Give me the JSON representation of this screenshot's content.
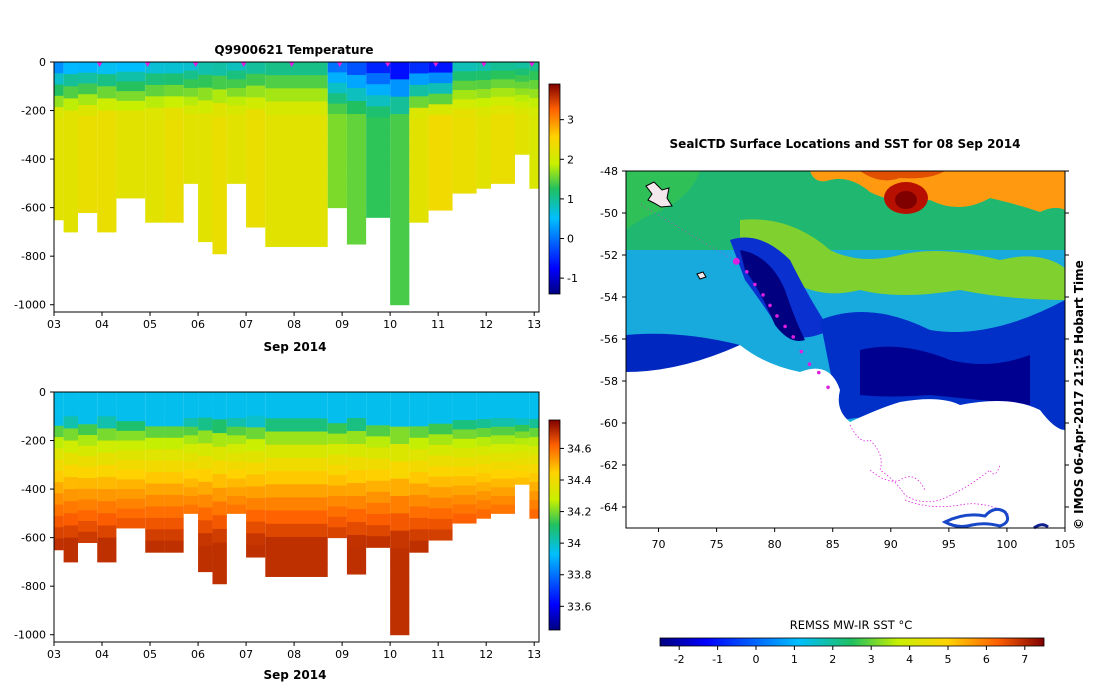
{
  "chart_data": [
    {
      "type": "heatmap",
      "title": "Q9900621  Temperature",
      "xlabel": "Sep 2014",
      "ylabel": "",
      "x_ticks": [
        "03",
        "04",
        "05",
        "06",
        "07",
        "08",
        "09",
        "10",
        "11",
        "12",
        "13"
      ],
      "x_range_days": [
        3,
        13.1
      ],
      "y_ticks": [
        0,
        -200,
        -400,
        -600,
        -800,
        -1000
      ],
      "ylim": [
        -1030,
        0
      ],
      "colorbar": {
        "ticks": [
          3,
          2,
          1,
          0,
          -1
        ],
        "range": [
          -1.4,
          3.9
        ]
      },
      "profiles": [
        {
          "t": 3.0,
          "depth": 650,
          "surface": -0.2,
          "deep": 2.2
        },
        {
          "t": 3.2,
          "depth": 700,
          "surface": 0.1,
          "deep": 2.2
        },
        {
          "t": 3.5,
          "depth": 620,
          "surface": 0.1,
          "deep": 2.3
        },
        {
          "t": 3.9,
          "depth": 700,
          "surface": 0.2,
          "deep": 2.3
        },
        {
          "t": 4.3,
          "depth": 560,
          "surface": 0.2,
          "deep": 2.2
        },
        {
          "t": 4.9,
          "depth": 660,
          "surface": 0.4,
          "deep": 2.2
        },
        {
          "t": 5.3,
          "depth": 660,
          "surface": 0.4,
          "deep": 2.3
        },
        {
          "t": 5.7,
          "depth": 500,
          "surface": 0.5,
          "deep": 2.2
        },
        {
          "t": 6.0,
          "depth": 740,
          "surface": 0.6,
          "deep": 2.2
        },
        {
          "t": 6.3,
          "depth": 790,
          "surface": 0.6,
          "deep": 2.3
        },
        {
          "t": 6.6,
          "depth": 500,
          "surface": 0.6,
          "deep": 2.2
        },
        {
          "t": 7.0,
          "depth": 680,
          "surface": 0.7,
          "deep": 2.3
        },
        {
          "t": 7.4,
          "depth": 760,
          "surface": 0.8,
          "deep": 2.2
        },
        {
          "t": 8.7,
          "depth": 600,
          "surface": -0.3,
          "deep": 1.6
        },
        {
          "t": 9.1,
          "depth": 750,
          "surface": -0.6,
          "deep": 1.5
        },
        {
          "t": 9.5,
          "depth": 640,
          "surface": -0.9,
          "deep": 1.3
        },
        {
          "t": 10.0,
          "depth": 1000,
          "surface": -1.3,
          "deep": 1.4
        },
        {
          "t": 10.4,
          "depth": 660,
          "surface": -1.0,
          "deep": 2.2
        },
        {
          "t": 10.8,
          "depth": 610,
          "surface": -1.2,
          "deep": 2.4
        },
        {
          "t": 11.3,
          "depth": 540,
          "surface": 0.6,
          "deep": 2.3
        },
        {
          "t": 11.8,
          "depth": 520,
          "surface": 0.7,
          "deep": 2.2
        },
        {
          "t": 12.1,
          "depth": 500,
          "surface": 0.8,
          "deep": 2.3
        },
        {
          "t": 12.6,
          "depth": 380,
          "surface": 0.8,
          "deep": 2.2
        },
        {
          "t": 12.9,
          "depth": 520,
          "surface": 0.9,
          "deep": 2.1
        }
      ]
    },
    {
      "type": "heatmap",
      "title": "",
      "xlabel": "Sep 2014",
      "ylabel": "",
      "x_ticks": [
        "03",
        "04",
        "05",
        "06",
        "07",
        "08",
        "09",
        "10",
        "11",
        "12",
        "13"
      ],
      "x_range_days": [
        3,
        13.1
      ],
      "y_ticks": [
        0,
        -200,
        -400,
        -600,
        -800,
        -1000
      ],
      "ylim": [
        -1030,
        0
      ],
      "colorbar": {
        "ticks": [
          34.6,
          34.4,
          34.2,
          34,
          33.8,
          33.6
        ],
        "range": [
          33.45,
          34.78
        ]
      },
      "profiles_surface": 33.95,
      "profiles_deep": 34.7
    },
    {
      "type": "heatmap",
      "title": "SealCTD Surface Locations and SST for 08 Sep 2014",
      "xlabel": "",
      "ylabel": "",
      "x_ticks": [
        70,
        75,
        80,
        85,
        90,
        95,
        100,
        105
      ],
      "xlim": [
        67.2,
        105
      ],
      "y_ticks": [
        -48,
        -50,
        -52,
        -54,
        -56,
        -58,
        -60,
        -62,
        -64
      ],
      "ylim": [
        -65,
        -48
      ],
      "colorbar": {
        "label": "REMSS MW-IR SST °C",
        "ticks": [
          -2,
          -1,
          0,
          1,
          2,
          3,
          4,
          5,
          6,
          7
        ],
        "range": [
          -2.5,
          7.5
        ]
      },
      "track": [
        {
          "lon": 76.7,
          "lat": -52.3
        },
        {
          "lon": 77.6,
          "lat": -52.8
        },
        {
          "lon": 78.3,
          "lat": -53.4
        },
        {
          "lon": 79.0,
          "lat": -53.9
        },
        {
          "lon": 79.6,
          "lat": -54.4
        },
        {
          "lon": 80.2,
          "lat": -54.9
        },
        {
          "lon": 80.9,
          "lat": -55.4
        },
        {
          "lon": 81.6,
          "lat": -55.9
        },
        {
          "lon": 82.3,
          "lat": -56.6
        },
        {
          "lon": 83.0,
          "lat": -57.2
        },
        {
          "lon": 83.8,
          "lat": -57.6
        },
        {
          "lon": 84.6,
          "lat": -58.3
        }
      ]
    }
  ],
  "side_text": "© IMOS 06-Apr-2017 21:25 Hobart Time"
}
